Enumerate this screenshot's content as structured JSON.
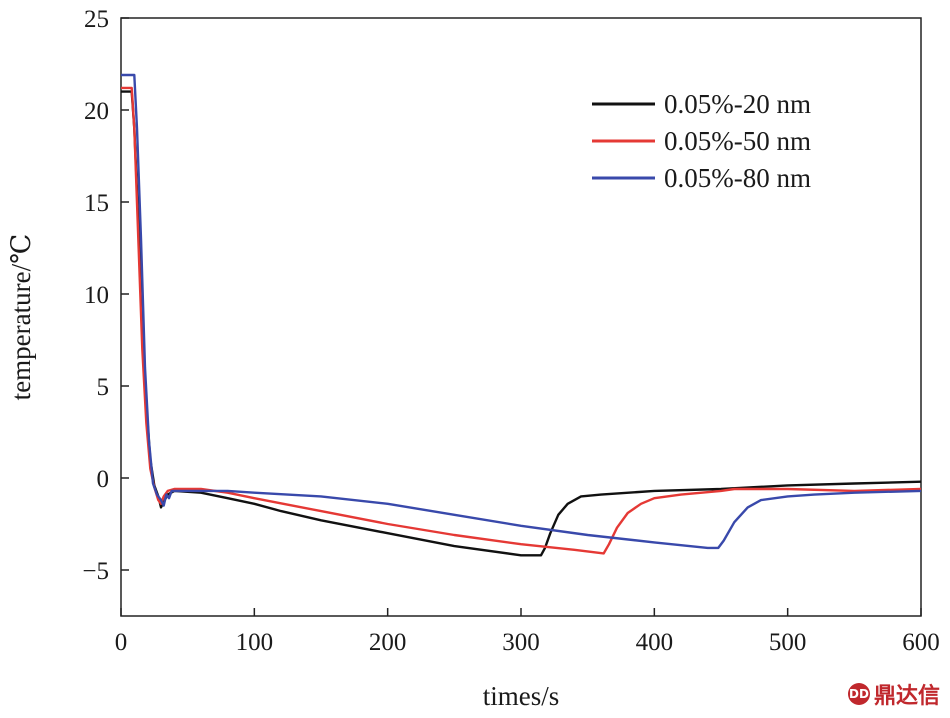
{
  "chart_data": {
    "type": "line",
    "xlabel": "times/s",
    "ylabel": "temperature/℃",
    "xlim": [
      0,
      600
    ],
    "ylim": [
      -7.5,
      25
    ],
    "xticks": [
      0,
      100,
      200,
      300,
      400,
      500,
      600
    ],
    "yticks": [
      -5,
      0,
      5,
      10,
      15,
      20,
      25
    ],
    "grid": false,
    "legend_position": "top-right",
    "series": [
      {
        "name": "0.05%-20 nm",
        "color": "#111111",
        "points": [
          [
            0,
            21.0
          ],
          [
            8,
            21.0
          ],
          [
            10,
            19
          ],
          [
            13,
            14
          ],
          [
            16,
            8
          ],
          [
            19,
            4
          ],
          [
            22,
            1
          ],
          [
            25,
            -0.4
          ],
          [
            28,
            -1.0
          ],
          [
            30,
            -1.6
          ],
          [
            32,
            -1.3
          ],
          [
            35,
            -0.9
          ],
          [
            40,
            -0.7
          ],
          [
            60,
            -0.8
          ],
          [
            80,
            -1.1
          ],
          [
            100,
            -1.4
          ],
          [
            120,
            -1.8
          ],
          [
            150,
            -2.3
          ],
          [
            200,
            -3.0
          ],
          [
            250,
            -3.7
          ],
          [
            300,
            -4.2
          ],
          [
            315,
            -4.2
          ],
          [
            318,
            -3.8
          ],
          [
            322,
            -3.0
          ],
          [
            328,
            -2.0
          ],
          [
            335,
            -1.4
          ],
          [
            345,
            -1.0
          ],
          [
            360,
            -0.9
          ],
          [
            400,
            -0.7
          ],
          [
            450,
            -0.6
          ],
          [
            500,
            -0.4
          ],
          [
            550,
            -0.3
          ],
          [
            600,
            -0.2
          ]
        ]
      },
      {
        "name": "0.05%-50 nm",
        "color": "#e53935",
        "points": [
          [
            0,
            21.2
          ],
          [
            8,
            21.2
          ],
          [
            10,
            19
          ],
          [
            13,
            13
          ],
          [
            16,
            7
          ],
          [
            19,
            3
          ],
          [
            22,
            0.5
          ],
          [
            25,
            -0.5
          ],
          [
            28,
            -1.2
          ],
          [
            30,
            -1.4
          ],
          [
            32,
            -1.0
          ],
          [
            35,
            -0.7
          ],
          [
            40,
            -0.6
          ],
          [
            60,
            -0.6
          ],
          [
            80,
            -0.8
          ],
          [
            100,
            -1.1
          ],
          [
            150,
            -1.8
          ],
          [
            200,
            -2.5
          ],
          [
            250,
            -3.1
          ],
          [
            300,
            -3.6
          ],
          [
            340,
            -3.9
          ],
          [
            362,
            -4.1
          ],
          [
            366,
            -3.6
          ],
          [
            372,
            -2.7
          ],
          [
            380,
            -1.9
          ],
          [
            390,
            -1.4
          ],
          [
            400,
            -1.1
          ],
          [
            420,
            -0.9
          ],
          [
            450,
            -0.7
          ],
          [
            460,
            -0.6
          ],
          [
            500,
            -0.6
          ],
          [
            550,
            -0.7
          ],
          [
            600,
            -0.6
          ]
        ]
      },
      {
        "name": "0.05%-80 nm",
        "color": "#3949ab",
        "points": [
          [
            0,
            21.9
          ],
          [
            10,
            21.9
          ],
          [
            12,
            19
          ],
          [
            15,
            13
          ],
          [
            18,
            6
          ],
          [
            21,
            2
          ],
          [
            24,
            -0.3
          ],
          [
            27,
            -0.9
          ],
          [
            30,
            -1.2
          ],
          [
            32,
            -1.5
          ],
          [
            34,
            -0.9
          ],
          [
            36,
            -1.1
          ],
          [
            38,
            -0.7
          ],
          [
            42,
            -0.7
          ],
          [
            60,
            -0.7
          ],
          [
            80,
            -0.7
          ],
          [
            100,
            -0.8
          ],
          [
            150,
            -1.0
          ],
          [
            200,
            -1.4
          ],
          [
            250,
            -2.0
          ],
          [
            300,
            -2.6
          ],
          [
            350,
            -3.1
          ],
          [
            400,
            -3.5
          ],
          [
            440,
            -3.8
          ],
          [
            448,
            -3.8
          ],
          [
            452,
            -3.4
          ],
          [
            460,
            -2.4
          ],
          [
            470,
            -1.6
          ],
          [
            480,
            -1.2
          ],
          [
            500,
            -1.0
          ],
          [
            520,
            -0.9
          ],
          [
            550,
            -0.8
          ],
          [
            600,
            -0.7
          ]
        ]
      }
    ]
  },
  "watermark": {
    "text": "鼎达信",
    "badge": "DD"
  }
}
